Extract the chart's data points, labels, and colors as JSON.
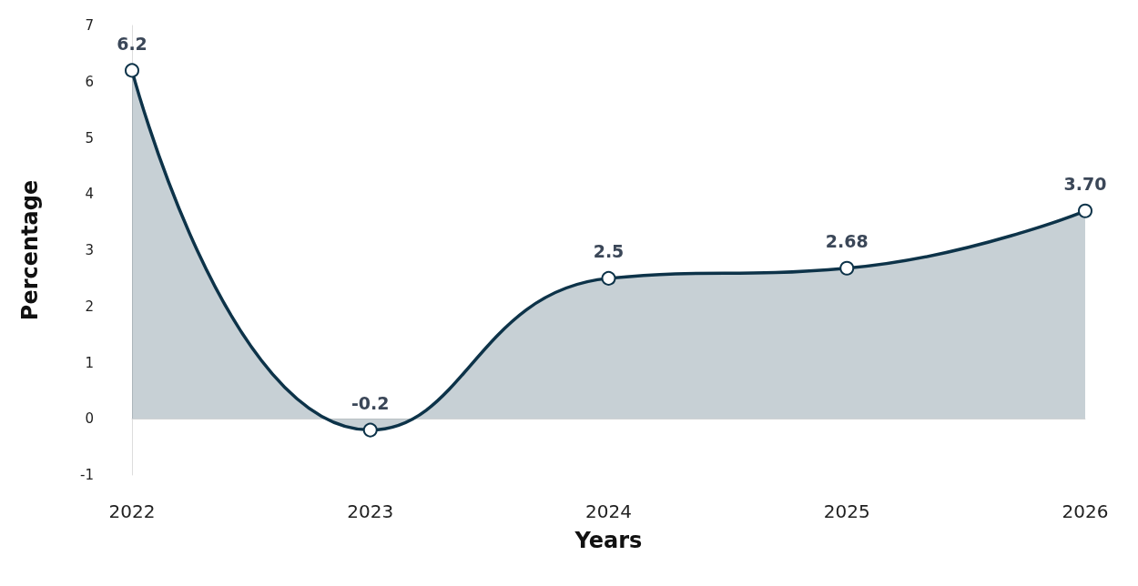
{
  "chart_data": {
    "type": "area",
    "xlabel": "Years",
    "ylabel": "Percentage",
    "categories": [
      "2022",
      "2023",
      "2024",
      "2025",
      "2026"
    ],
    "values": [
      6.2,
      -0.2,
      2.5,
      2.68,
      3.7
    ],
    "value_labels": [
      "6.2",
      "-0.2",
      "2.5",
      "2.68",
      "3.70"
    ],
    "color": "#0d3349",
    "ylim": [
      -1,
      7
    ],
    "yticks": [
      -1,
      0,
      1,
      2,
      3,
      4,
      5,
      6,
      7
    ],
    "marker": "circle"
  }
}
